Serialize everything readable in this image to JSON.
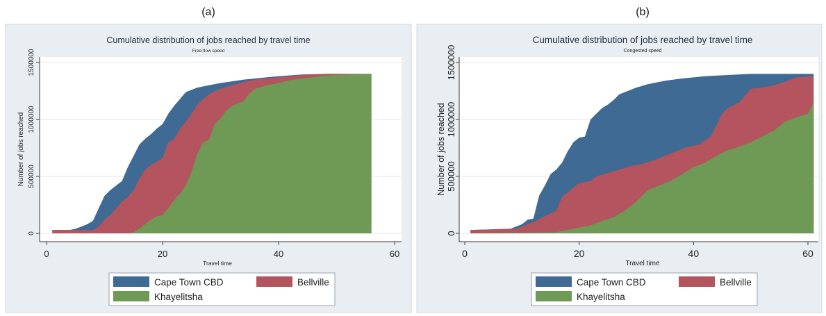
{
  "chart_data": [
    {
      "type": "area",
      "panel_label": "(a)",
      "title": "Cumulative distribution of jobs reached by travel time",
      "subtitle": "Free-flow speed",
      "xlabel": "Travel time",
      "ylabel": "Number of jobs reached",
      "xlim": [
        0,
        60
      ],
      "ylim": [
        0,
        1500000
      ],
      "xticks": [
        0,
        20,
        40,
        60
      ],
      "xtick_labels": [
        "0",
        "20",
        "40",
        "60"
      ],
      "yticks": [
        0,
        500000,
        1000000,
        1500000
      ],
      "ytick_labels": [
        "0",
        "500000",
        "1000000",
        "1500000"
      ],
      "grid": true,
      "legend_position": "bottom",
      "series": [
        {
          "name": "Cape Town CBD",
          "color": "#3f6a93",
          "x": [
            1,
            4,
            5,
            6,
            7,
            8,
            9,
            10,
            11,
            12,
            13,
            14,
            15,
            16,
            17,
            18,
            19,
            20,
            21,
            22,
            23,
            24,
            25,
            26,
            28,
            30,
            32,
            34,
            36,
            38,
            40,
            44,
            48,
            56
          ],
          "y": [
            30000,
            30000,
            40000,
            60000,
            80000,
            110000,
            220000,
            330000,
            380000,
            420000,
            460000,
            580000,
            680000,
            780000,
            830000,
            870000,
            920000,
            960000,
            1050000,
            1120000,
            1180000,
            1240000,
            1260000,
            1280000,
            1300000,
            1320000,
            1335000,
            1350000,
            1360000,
            1370000,
            1380000,
            1395000,
            1400000,
            1400000
          ]
        },
        {
          "name": "Bellville",
          "color": "#b3545e",
          "x": [
            1,
            8,
            9,
            10,
            11,
            12,
            13,
            14,
            15,
            16,
            17,
            18,
            19,
            20,
            21,
            22,
            23,
            24,
            25,
            26,
            27,
            28,
            29,
            30,
            32,
            34,
            36,
            40,
            44,
            48,
            56
          ],
          "y": [
            30000,
            30000,
            60000,
            120000,
            160000,
            220000,
            280000,
            320000,
            380000,
            480000,
            560000,
            600000,
            630000,
            660000,
            800000,
            830000,
            920000,
            980000,
            1050000,
            1130000,
            1180000,
            1220000,
            1250000,
            1270000,
            1300000,
            1330000,
            1350000,
            1370000,
            1390000,
            1400000,
            1400000
          ]
        },
        {
          "name": "Khayelitsha",
          "color": "#6f9a56",
          "x": [
            1,
            14,
            15,
            16,
            17,
            18,
            19,
            20,
            21,
            22,
            23,
            24,
            25,
            26,
            27,
            28,
            29,
            30,
            31,
            32,
            33,
            34,
            35,
            36,
            38,
            40,
            42,
            45,
            48,
            52,
            56
          ],
          "y": [
            0,
            0,
            10000,
            40000,
            80000,
            120000,
            150000,
            160000,
            220000,
            290000,
            350000,
            420000,
            540000,
            700000,
            800000,
            820000,
            960000,
            1010000,
            1080000,
            1120000,
            1140000,
            1160000,
            1230000,
            1270000,
            1300000,
            1320000,
            1345000,
            1365000,
            1385000,
            1395000,
            1400000
          ]
        }
      ]
    },
    {
      "type": "area",
      "panel_label": "(b)",
      "title": "Cumulative distribution of jobs reached by travel time",
      "subtitle": "Congested speed",
      "xlabel": "Travel time",
      "ylabel": "Number of jobs reached",
      "xlim": [
        0,
        60
      ],
      "ylim": [
        0,
        1500000
      ],
      "xticks": [
        0,
        20,
        40,
        60
      ],
      "xtick_labels": [
        "0",
        "20",
        "40",
        "60"
      ],
      "yticks": [
        0,
        500000,
        1000000,
        1500000
      ],
      "ytick_labels": [
        "0",
        "500000",
        "1000000",
        "1500000"
      ],
      "grid": true,
      "legend_position": "bottom",
      "series": [
        {
          "name": "Cape Town CBD",
          "color": "#3f6a93",
          "x": [
            1,
            8,
            10,
            11,
            12,
            13,
            14,
            15,
            16,
            17,
            18,
            19,
            20,
            21,
            22,
            23,
            24,
            25,
            26,
            27,
            28,
            30,
            32,
            35,
            38,
            42,
            46,
            50,
            55,
            61
          ],
          "y": [
            30000,
            40000,
            80000,
            120000,
            130000,
            330000,
            420000,
            520000,
            560000,
            620000,
            720000,
            800000,
            840000,
            850000,
            1000000,
            1050000,
            1100000,
            1130000,
            1170000,
            1220000,
            1240000,
            1280000,
            1310000,
            1340000,
            1360000,
            1380000,
            1390000,
            1400000,
            1400000,
            1400000
          ]
        },
        {
          "name": "Bellville",
          "color": "#b3545e",
          "x": [
            1,
            9,
            10,
            11,
            12,
            14,
            16,
            17,
            18,
            19,
            20,
            22,
            23,
            25,
            27,
            29,
            31,
            33,
            35,
            37,
            39,
            41,
            43,
            44,
            45,
            46,
            48,
            50,
            52,
            54,
            56,
            58,
            61
          ],
          "y": [
            30000,
            40000,
            60000,
            80000,
            100000,
            150000,
            200000,
            320000,
            360000,
            400000,
            440000,
            460000,
            500000,
            530000,
            560000,
            590000,
            610000,
            640000,
            680000,
            720000,
            760000,
            780000,
            850000,
            950000,
            1050000,
            1100000,
            1150000,
            1270000,
            1280000,
            1300000,
            1330000,
            1370000,
            1380000
          ]
        },
        {
          "name": "Khayelitsha",
          "color": "#6f9a56",
          "x": [
            1,
            16,
            18,
            20,
            22,
            24,
            26,
            28,
            30,
            32,
            34,
            36,
            38,
            40,
            42,
            44,
            46,
            48,
            50,
            52,
            54,
            56,
            58,
            60,
            61
          ],
          "y": [
            0,
            10000,
            30000,
            50000,
            70000,
            110000,
            140000,
            200000,
            280000,
            380000,
            420000,
            460000,
            520000,
            580000,
            620000,
            680000,
            730000,
            760000,
            800000,
            850000,
            900000,
            980000,
            1020000,
            1050000,
            1150000
          ]
        }
      ]
    }
  ]
}
